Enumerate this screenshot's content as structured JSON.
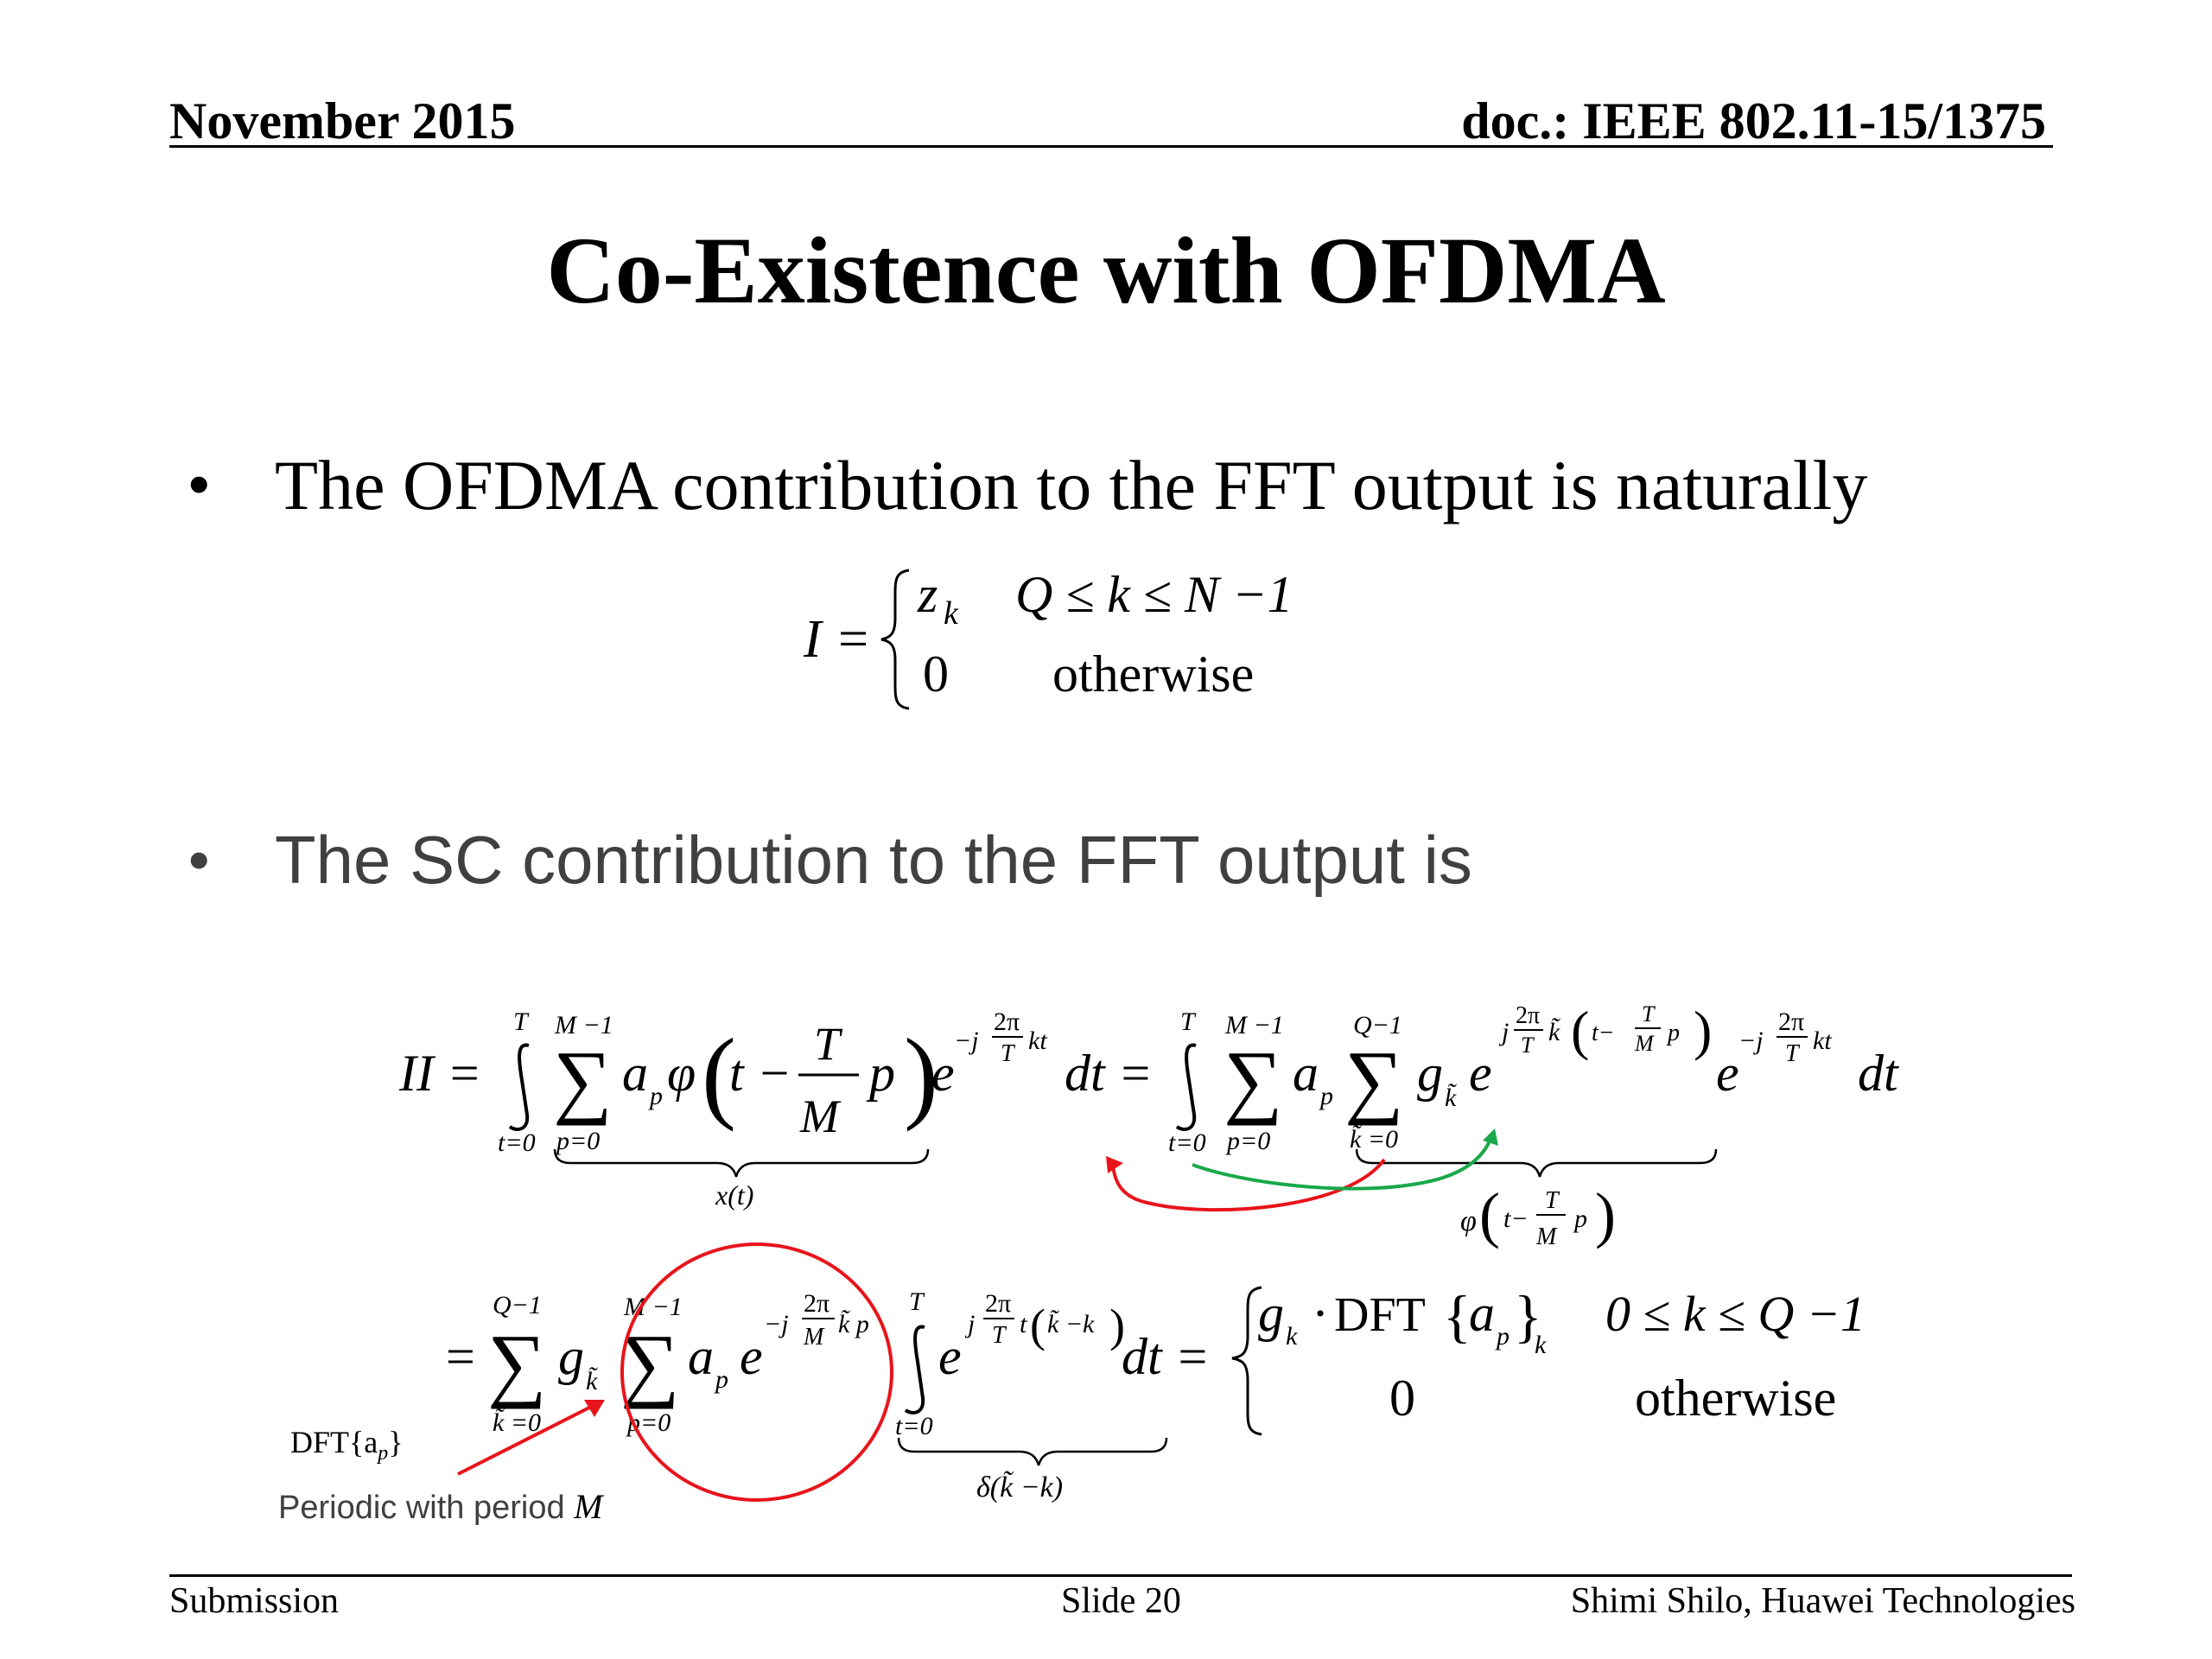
{
  "header": {
    "date": "November 2015",
    "doc_id": "doc.: IEEE 802.11-15/1375"
  },
  "slide": {
    "title": "Co-Existence with OFDMA",
    "bullets": [
      "The OFDMA contribution to the FFT output is naturally",
      "The SC contribution to the FFT output is"
    ],
    "annotation_dft": "DFT{a",
    "annotation_dft_close": "}",
    "annotation_periodic": "Periodic with period ",
    "annotation_period_symbol": "M"
  },
  "equation1": {
    "lhs": "I =",
    "case1_value": "z",
    "case1_sub": "k",
    "case1_condition": "Q ≤ k ≤ N −1",
    "case2_value": "0",
    "case2_condition": "otherwise"
  },
  "equation2": {
    "lhs": "II =",
    "brace_label_1": "x(t)",
    "brace_label_2_phi": "φ",
    "brace_label_3": "δ(k̃ −k)",
    "piece1_condition": "0 ≤ k ≤ Q −1",
    "piece2_value": "0",
    "piece2_condition": "otherwise",
    "dft_text": "DFT"
  },
  "colors": {
    "red_arrow": "#e8141b",
    "green_arrow": "#1aa84a",
    "body_text": "#000000",
    "sc_bullet_text": "#404040"
  },
  "footer": {
    "left": "Submission",
    "center": "Slide 20",
    "right": "Shimi Shilo, Huawei Technologies"
  }
}
